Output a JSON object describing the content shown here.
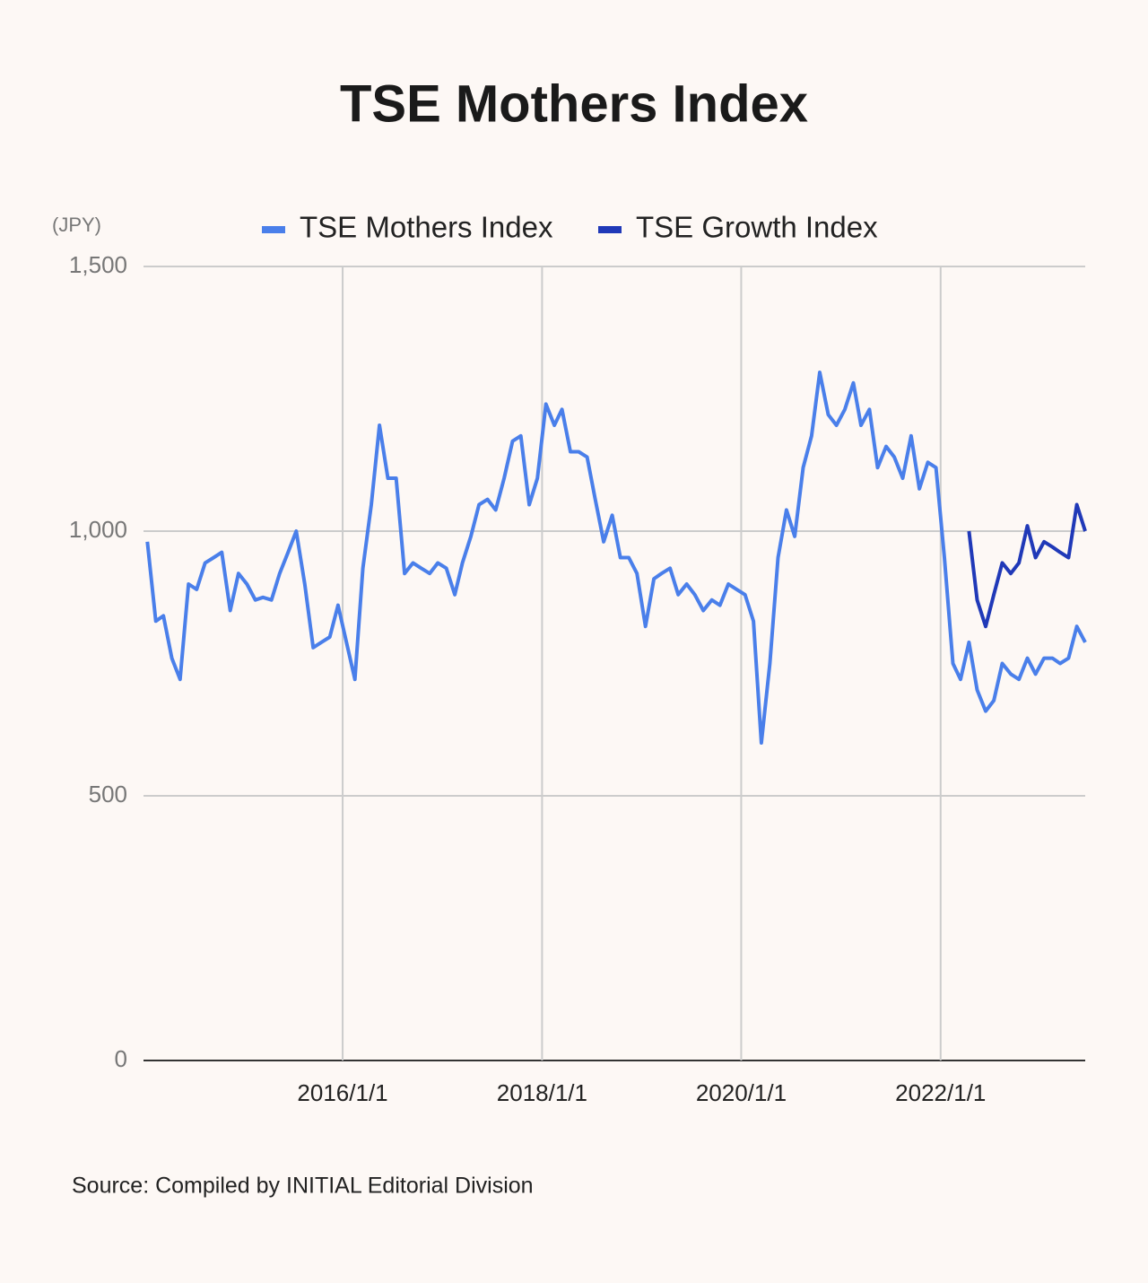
{
  "chart_data": {
    "type": "line",
    "title": "TSE Mothers Index",
    "y_label": "(JPY)",
    "source": "Source: Compiled by INITIAL Editorial Division",
    "x": [
      "2014-01-15",
      "2014-02-15",
      "2014-03-15",
      "2014-04-15",
      "2014-05-15",
      "2014-06-15",
      "2014-07-15",
      "2014-08-15",
      "2014-09-15",
      "2014-10-15",
      "2014-11-15",
      "2014-12-15",
      "2015-01-15",
      "2015-02-15",
      "2015-03-15",
      "2015-04-15",
      "2015-05-15",
      "2015-06-15",
      "2015-07-15",
      "2015-08-15",
      "2015-09-15",
      "2015-10-15",
      "2015-11-15",
      "2015-12-15",
      "2016-01-15",
      "2016-02-15",
      "2016-03-15",
      "2016-04-15",
      "2016-05-15",
      "2016-06-15",
      "2016-07-15",
      "2016-08-15",
      "2016-09-15",
      "2016-10-15",
      "2016-11-15",
      "2016-12-15",
      "2017-01-15",
      "2017-02-15",
      "2017-03-15",
      "2017-04-15",
      "2017-05-15",
      "2017-06-15",
      "2017-07-15",
      "2017-08-15",
      "2017-09-15",
      "2017-10-15",
      "2017-11-15",
      "2017-12-15",
      "2018-01-15",
      "2018-02-15",
      "2018-03-15",
      "2018-04-15",
      "2018-05-15",
      "2018-06-15",
      "2018-07-15",
      "2018-08-15",
      "2018-09-15",
      "2018-10-15",
      "2018-11-15",
      "2018-12-15",
      "2019-01-15",
      "2019-02-15",
      "2019-03-15",
      "2019-04-15",
      "2019-05-15",
      "2019-06-15",
      "2019-07-15",
      "2019-08-15",
      "2019-09-15",
      "2019-10-15",
      "2019-11-15",
      "2019-12-15",
      "2020-01-15",
      "2020-02-15",
      "2020-03-15",
      "2020-04-15",
      "2020-05-15",
      "2020-06-15",
      "2020-07-15",
      "2020-08-15",
      "2020-09-15",
      "2020-10-15",
      "2020-11-15",
      "2020-12-15",
      "2021-01-15",
      "2021-02-15",
      "2021-03-15",
      "2021-04-15",
      "2021-05-15",
      "2021-06-15",
      "2021-07-15",
      "2021-08-15",
      "2021-09-15",
      "2021-10-15",
      "2021-11-15",
      "2021-12-15",
      "2022-01-15",
      "2022-02-15",
      "2022-03-15",
      "2022-04-15",
      "2022-05-15",
      "2022-06-15",
      "2022-07-15",
      "2022-08-15",
      "2022-09-15",
      "2022-10-15",
      "2022-11-15",
      "2022-12-15",
      "2023-01-15",
      "2023-02-15",
      "2023-03-15",
      "2023-04-15",
      "2023-05-15",
      "2023-06-15"
    ],
    "series": [
      {
        "name": "TSE Mothers Index",
        "color": "#4a7fea",
        "values": [
          980,
          830,
          840,
          760,
          720,
          900,
          890,
          940,
          950,
          960,
          850,
          920,
          900,
          870,
          875,
          870,
          920,
          960,
          1000,
          900,
          780,
          790,
          800,
          860,
          790,
          720,
          930,
          1050,
          1200,
          1100,
          1100,
          920,
          940,
          930,
          920,
          940,
          930,
          880,
          940,
          990,
          1050,
          1060,
          1040,
          1100,
          1170,
          1180,
          1050,
          1100,
          1240,
          1200,
          1230,
          1150,
          1150,
          1140,
          1060,
          980,
          1030,
          950,
          950,
          920,
          820,
          910,
          920,
          930,
          880,
          900,
          880,
          850,
          870,
          860,
          900,
          890,
          880,
          830,
          600,
          750,
          950,
          1040,
          990,
          1120,
          1180,
          1300,
          1220,
          1200,
          1230,
          1280,
          1200,
          1230,
          1120,
          1160,
          1140,
          1100,
          1180,
          1080,
          1130,
          1120,
          950,
          750,
          720,
          790,
          700,
          660,
          680,
          750,
          730,
          720,
          760,
          730,
          760,
          760,
          750,
          760,
          820,
          790
        ]
      },
      {
        "name": "TSE Growth Index",
        "color": "#2039b8",
        "values": [
          null,
          null,
          null,
          null,
          null,
          null,
          null,
          null,
          null,
          null,
          null,
          null,
          null,
          null,
          null,
          null,
          null,
          null,
          null,
          null,
          null,
          null,
          null,
          null,
          null,
          null,
          null,
          null,
          null,
          null,
          null,
          null,
          null,
          null,
          null,
          null,
          null,
          null,
          null,
          null,
          null,
          null,
          null,
          null,
          null,
          null,
          null,
          null,
          null,
          null,
          null,
          null,
          null,
          null,
          null,
          null,
          null,
          null,
          null,
          null,
          null,
          null,
          null,
          null,
          null,
          null,
          null,
          null,
          null,
          null,
          null,
          null,
          null,
          null,
          null,
          null,
          null,
          null,
          null,
          null,
          null,
          null,
          null,
          null,
          null,
          null,
          null,
          null,
          null,
          null,
          null,
          null,
          null,
          null,
          null,
          null,
          null,
          null,
          null,
          1000,
          870,
          820,
          880,
          940,
          920,
          940,
          1010,
          950,
          980,
          970,
          960,
          950,
          1050,
          1000
        ]
      }
    ],
    "xlim": [
      "2014-01-01",
      "2023-06-15"
    ],
    "xticks": [
      {
        "value": "2016-01-01",
        "label": "2016/1/1"
      },
      {
        "value": "2018-01-01",
        "label": "2018/1/1"
      },
      {
        "value": "2020-01-01",
        "label": "2020/1/1"
      },
      {
        "value": "2022-01-01",
        "label": "2022/1/1"
      }
    ],
    "ylim": [
      0,
      1500
    ],
    "yticks": [
      0,
      {
        "value": 500,
        "label": "500"
      },
      {
        "value": 1000,
        "label": "1,000"
      },
      {
        "value": 1500,
        "label": "1,500"
      }
    ],
    "grid": true
  }
}
